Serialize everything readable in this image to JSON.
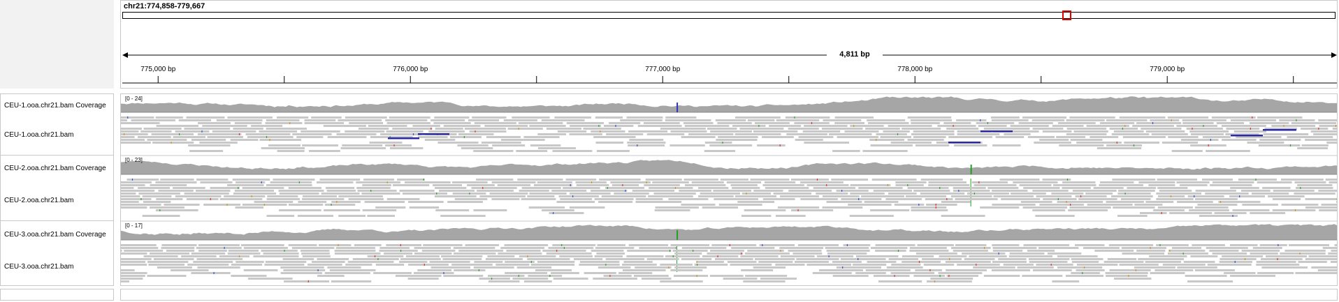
{
  "header": {
    "locus": "chr21:774,858-779,667",
    "span_label": "4,811 bp",
    "ticks": [
      {
        "label": "775,000 bp",
        "bp": 775000
      },
      {
        "label": "776,000 bp",
        "bp": 776000
      },
      {
        "label": "777,000 bp",
        "bp": 777000
      },
      {
        "label": "778,000 bp",
        "bp": 778000
      },
      {
        "label": "779,000 bp",
        "bp": 779000
      }
    ],
    "minor_ticks_bp": [
      775500,
      776500,
      777500,
      778500,
      779500
    ],
    "view_start_bp": 774858,
    "view_end_bp": 779667,
    "ideogram_marker_fraction": 0.778
  },
  "tracks": [
    {
      "coverage_name": "CEU-1.ooa.chr21.bam Coverage",
      "reads_name": "CEU-1.ooa.chr21.bam",
      "scale": "[0 - 24]",
      "mismatch_positions_bp": [
        777055
      ],
      "mismatch_color": "#3030c0",
      "seed": 11
    },
    {
      "coverage_name": "CEU-2.ooa.chr21.bam Coverage",
      "reads_name": "CEU-2.ooa.chr21.bam",
      "scale": "[0 - 23]",
      "mismatch_positions_bp": [
        778220
      ],
      "mismatch_color": "#20a020",
      "seed": 23
    },
    {
      "coverage_name": "CEU-3.ooa.chr21.bam Coverage",
      "reads_name": "CEU-3.ooa.chr21.bam",
      "scale": "[0 - 17]",
      "mismatch_positions_bp": [
        777055
      ],
      "mismatch_color": "#20a020",
      "seed": 37
    }
  ],
  "colors": {
    "coverage": "#a6a6a6",
    "read": "#c8c8c8",
    "long_insert": "#2a2aa8",
    "marker": "#e00000"
  }
}
